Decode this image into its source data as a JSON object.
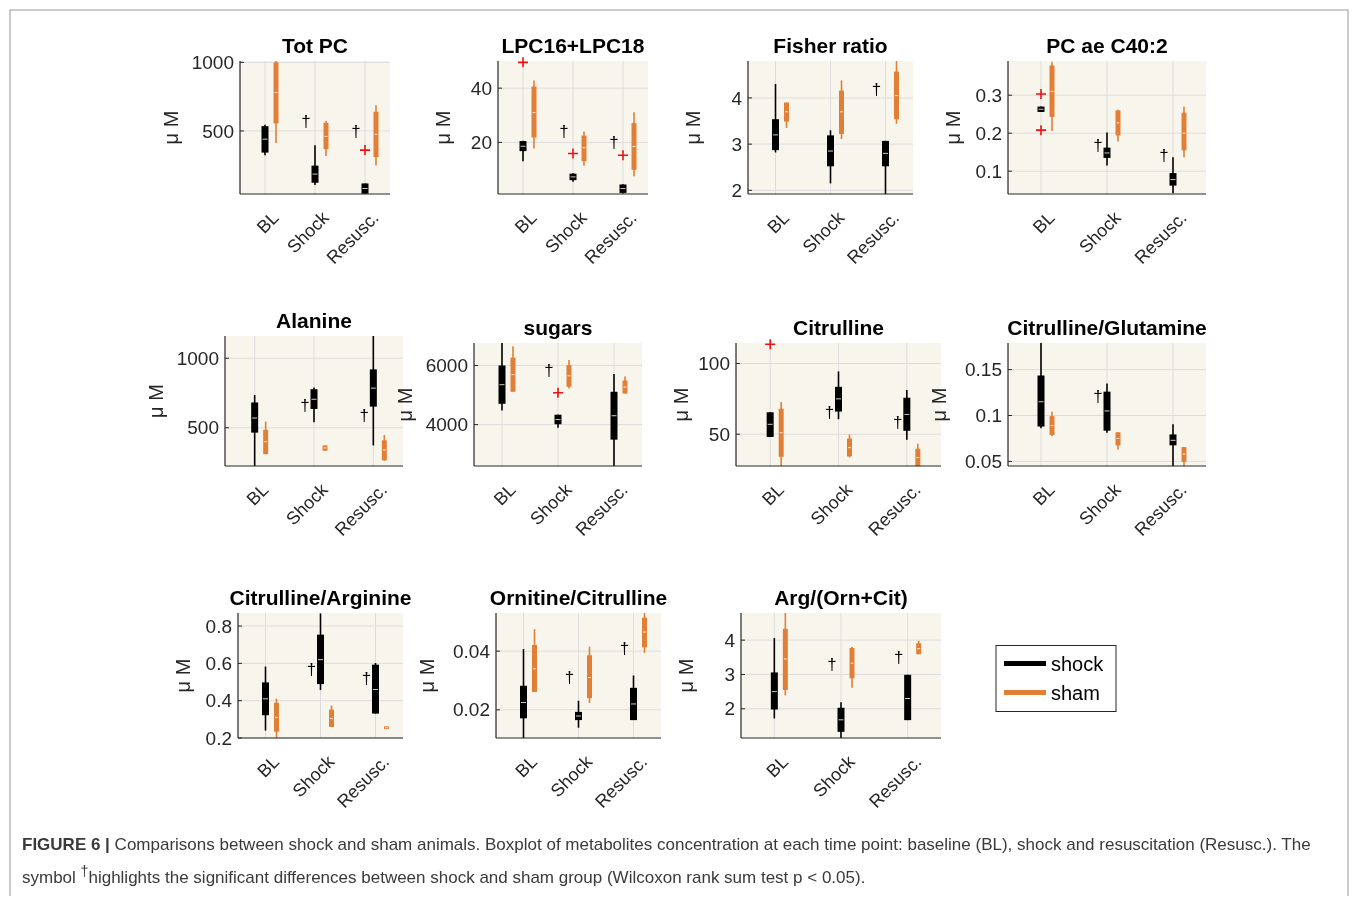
{
  "chart_data": [
    {
      "type": "box",
      "title": "Tot PC",
      "ylabel": "μ M",
      "categories": [
        "BL",
        "Shock",
        "Resusc."
      ],
      "ylim": [
        40,
        1010
      ],
      "yticks": [
        500,
        1000
      ],
      "grid": true,
      "series": [
        {
          "color": "#000000",
          "boxes": [
            {
              "low": 322,
              "q1": 342,
              "median": 440,
              "q3": 535,
              "high": 545
            },
            {
              "low": 105,
              "q1": 122,
              "median": 185,
              "q3": 247,
              "high": 395
            },
            {
              "low": 42,
              "q1": 42,
              "median": 80,
              "q3": 117,
              "high": 117,
              "outliers": [
                360
              ]
            }
          ]
        },
        {
          "color": "#e17f36",
          "boxes": [
            {
              "low": 412,
              "q1": 555,
              "median": 780,
              "q3": 1000,
              "high": 1010
            },
            {
              "low": 318,
              "q1": 367,
              "median": 460,
              "q3": 560,
              "high": 572
            },
            {
              "low": 247,
              "q1": 310,
              "median": 475,
              "q3": 640,
              "high": 687
            }
          ]
        }
      ],
      "annotations": [
        "†",
        "†"
      ]
    },
    {
      "type": "box",
      "title": "LPC16+LPC18",
      "ylabel": "μ M",
      "categories": [
        "BL",
        "Shock",
        "Resusc."
      ],
      "ylim": [
        1,
        50
      ],
      "yticks": [
        20,
        40
      ],
      "grid": true,
      "series": [
        {
          "color": "#000000",
          "boxes": [
            {
              "low": 13.1,
              "q1": 16.8,
              "median": 18.6,
              "q3": 20.5,
              "high": 20.6,
              "outliers": [
                49.5
              ]
            },
            {
              "low": 5.5,
              "q1": 6.1,
              "median": 7.3,
              "q3": 8.5,
              "high": 8.6,
              "outliers": [
                15.9
              ]
            },
            {
              "low": 1.2,
              "q1": 1.4,
              "median": 3,
              "q3": 4.5,
              "high": 4.6,
              "outliers": [
                15.3
              ]
            }
          ]
        },
        {
          "color": "#e17f36",
          "boxes": [
            {
              "low": 17.8,
              "q1": 21.8,
              "median": 31,
              "q3": 40.6,
              "high": 42.8
            },
            {
              "low": 11.4,
              "q1": 13.1,
              "median": 18,
              "q3": 22.5,
              "high": 24
            },
            {
              "low": 7.5,
              "q1": 9.9,
              "median": 18.5,
              "q3": 27.1,
              "high": 31.1
            }
          ]
        }
      ],
      "annotations": [
        "†",
        "†"
      ]
    },
    {
      "type": "box",
      "title": "Fisher ratio",
      "ylabel": "μ M",
      "categories": [
        "BL",
        "Shock",
        "Resusc."
      ],
      "ylim": [
        1.92,
        4.8
      ],
      "yticks": [
        2,
        3,
        4
      ],
      "grid": true,
      "series": [
        {
          "color": "#000000",
          "boxes": [
            {
              "low": 2.82,
              "q1": 2.87,
              "median": 3.2,
              "q3": 3.54,
              "high": 4.3
            },
            {
              "low": 2.15,
              "q1": 2.52,
              "median": 2.85,
              "q3": 3.19,
              "high": 3.3
            },
            {
              "low": 1.92,
              "q1": 2.52,
              "median": 2.8,
              "q3": 3.07,
              "high": 3.07
            }
          ]
        },
        {
          "color": "#e17f36",
          "boxes": [
            {
              "low": 3.35,
              "q1": 3.49,
              "median": 3.7,
              "q3": 3.9,
              "high": 3.9
            },
            {
              "low": 3.11,
              "q1": 3.22,
              "median": 3.7,
              "q3": 4.16,
              "high": 4.38
            },
            {
              "low": 3.44,
              "q1": 3.54,
              "median": 4.05,
              "q3": 4.57,
              "high": 4.8
            }
          ]
        }
      ],
      "annotations": [
        "†"
      ]
    },
    {
      "type": "box",
      "title": "PC ae C40:2",
      "ylabel": "μ M",
      "categories": [
        "BL",
        "Shock",
        "Resusc."
      ],
      "ylim": [
        0.04,
        0.39
      ],
      "yticks": [
        0.1,
        0.2,
        0.3
      ],
      "grid": true,
      "series": [
        {
          "color": "#000000",
          "boxes": [
            {
              "low": 0.256,
              "q1": 0.256,
              "median": 0.263,
              "q3": 0.27,
              "high": 0.27,
              "outliers": [
                0.303,
                0.208
              ]
            },
            {
              "low": 0.115,
              "q1": 0.135,
              "median": 0.148,
              "q3": 0.162,
              "high": 0.202
            },
            {
              "low": 0.042,
              "q1": 0.062,
              "median": 0.078,
              "q3": 0.095,
              "high": 0.137
            }
          ]
        },
        {
          "color": "#e17f36",
          "boxes": [
            {
              "low": 0.206,
              "q1": 0.243,
              "median": 0.31,
              "q3": 0.378,
              "high": 0.388
            },
            {
              "low": 0.178,
              "q1": 0.194,
              "median": 0.227,
              "q3": 0.26,
              "high": 0.262
            },
            {
              "low": 0.137,
              "q1": 0.155,
              "median": 0.2,
              "q3": 0.254,
              "high": 0.27
            }
          ]
        }
      ],
      "annotations": [
        "†",
        "†"
      ]
    },
    {
      "type": "box",
      "title": "Alanine",
      "ylabel": "μ M",
      "categories": [
        "BL",
        "Shock",
        "Resusc."
      ],
      "ylim": [
        225,
        1160
      ],
      "yticks": [
        500,
        1000
      ],
      "grid": true,
      "series": [
        {
          "color": "#000000",
          "boxes": [
            {
              "low": 225,
              "q1": 465,
              "median": 570,
              "q3": 682,
              "high": 735
            },
            {
              "low": 540,
              "q1": 635,
              "median": 705,
              "q3": 777,
              "high": 789
            },
            {
              "low": 373,
              "q1": 652,
              "median": 785,
              "q3": 920,
              "high": 1160
            }
          ]
        },
        {
          "color": "#e17f36",
          "boxes": [
            {
              "low": 310,
              "q1": 310,
              "median": 400,
              "q3": 485,
              "high": 545
            },
            {
              "low": 335,
              "q1": 335,
              "median": 355,
              "q3": 373,
              "high": 373
            },
            {
              "low": 262,
              "q1": 266,
              "median": 340,
              "q3": 410,
              "high": 448
            }
          ]
        }
      ],
      "annotations": [
        "†",
        "†"
      ]
    },
    {
      "type": "box",
      "title": "sugars",
      "ylabel": "μ M",
      "categories": [
        "BL",
        "Shock",
        "Resusc."
      ],
      "ylim": [
        2600,
        6760
      ],
      "yticks": [
        4000,
        6000
      ],
      "grid": true,
      "series": [
        {
          "color": "#000000",
          "boxes": [
            {
              "low": 4474,
              "q1": 4705,
              "median": 5350,
              "q3": 6000,
              "high": 6760
            },
            {
              "low": 3896,
              "q1": 4012,
              "median": 4170,
              "q3": 4335,
              "high": 4335,
              "outliers": [
                5075
              ]
            },
            {
              "low": 2600,
              "q1": 3491,
              "median": 4300,
              "q3": 5110,
              "high": 5711
            }
          ]
        },
        {
          "color": "#e17f36",
          "boxes": [
            {
              "low": 5110,
              "q1": 5110,
              "median": 5690,
              "q3": 6266,
              "high": 6647
            },
            {
              "low": 5225,
              "q1": 5283,
              "median": 5650,
              "q3": 6012,
              "high": 6185
            },
            {
              "low": 5052,
              "q1": 5052,
              "median": 5270,
              "q3": 5491,
              "high": 5630
            }
          ]
        }
      ],
      "annotations": [
        "†"
      ]
    },
    {
      "type": "box",
      "title": "Citrulline",
      "ylabel": "μ M",
      "categories": [
        "BL",
        "Shock",
        "Resusc."
      ],
      "ylim": [
        27.5,
        114.5
      ],
      "yticks": [
        50,
        100
      ],
      "grid": true,
      "series": [
        {
          "color": "#000000",
          "boxes": [
            {
              "low": 48,
              "q1": 48,
              "median": 57,
              "q3": 65.5,
              "high": 65.5,
              "outliers": [
                113.6
              ]
            },
            {
              "low": 60.6,
              "q1": 66,
              "median": 75,
              "q3": 83.5,
              "high": 94.4
            },
            {
              "low": 46.1,
              "q1": 52.4,
              "median": 64,
              "q3": 75.8,
              "high": 81.3
            }
          ]
        },
        {
          "color": "#e17f36",
          "boxes": [
            {
              "low": 27.5,
              "q1": 34,
              "median": 51,
              "q3": 68,
              "high": 72.8
            },
            {
              "low": 33.6,
              "q1": 34.3,
              "median": 40.5,
              "q3": 46.9,
              "high": 49.8
            },
            {
              "low": 27.5,
              "q1": 27.5,
              "median": 33.5,
              "q3": 39.7,
              "high": 43.3
            }
          ]
        }
      ],
      "annotations": [
        "†",
        "†"
      ]
    },
    {
      "type": "box",
      "title": "Citrulline/Glutamine",
      "ylabel": "μ M",
      "categories": [
        "BL",
        "Shock",
        "Resusc."
      ],
      "ylim": [
        0.045,
        0.179
      ],
      "yticks": [
        0.05,
        0.1,
        0.15
      ],
      "grid": true,
      "series": [
        {
          "color": "#000000",
          "boxes": [
            {
              "low": 0.086,
              "q1": 0.088,
              "median": 0.115,
              "q3": 0.1436,
              "high": 0.179
            },
            {
              "low": 0.0813,
              "q1": 0.0835,
              "median": 0.105,
              "q3": 0.126,
              "high": 0.1348
            },
            {
              "low": 0.045,
              "q1": 0.0675,
              "median": 0.073,
              "q3": 0.0794,
              "high": 0.0906
            }
          ]
        },
        {
          "color": "#e17f36",
          "boxes": [
            {
              "low": 0.0776,
              "q1": 0.0787,
              "median": 0.089,
              "q3": 0.0993,
              "high": 0.104
            },
            {
              "low": 0.063,
              "q1": 0.0675,
              "median": 0.075,
              "q3": 0.0817,
              "high": 0.0817
            },
            {
              "low": 0.045,
              "q1": 0.0496,
              "median": 0.058,
              "q3": 0.0656,
              "high": 0.0656
            }
          ]
        }
      ],
      "annotations": [
        "†"
      ]
    },
    {
      "type": "box",
      "title": "Citrulline/Arginine",
      "ylabel": "μ M",
      "categories": [
        "BL",
        "Shock",
        "Resusc."
      ],
      "ylim": [
        0.2,
        0.87
      ],
      "yticks": [
        0.2,
        0.4,
        0.6,
        0.8
      ],
      "grid": true,
      "series": [
        {
          "color": "#000000",
          "boxes": [
            {
              "low": 0.24,
              "q1": 0.322,
              "median": 0.41,
              "q3": 0.498,
              "high": 0.583
            },
            {
              "low": 0.457,
              "q1": 0.489,
              "median": 0.62,
              "q3": 0.754,
              "high": 0.868
            },
            {
              "low": 0.331,
              "q1": 0.331,
              "median": 0.46,
              "q3": 0.593,
              "high": 0.602
            }
          ]
        },
        {
          "color": "#e17f36",
          "boxes": [
            {
              "low": 0.2,
              "q1": 0.234,
              "median": 0.31,
              "q3": 0.389,
              "high": 0.411
            },
            {
              "low": 0.259,
              "q1": 0.259,
              "median": 0.305,
              "q3": 0.352,
              "high": 0.374
            },
            {
              "low": 0.248,
              "q1": 0.248,
              "median": 0.255,
              "q3": 0.262,
              "high": 0.262
            }
          ]
        }
      ],
      "annotations": [
        "†",
        "†"
      ]
    },
    {
      "type": "box",
      "title": "Ornitine/Citrulline",
      "ylabel": "μ M",
      "categories": [
        "BL",
        "Shock",
        "Resusc."
      ],
      "ylim": [
        0.0104,
        0.053
      ],
      "yticks": [
        0.02,
        0.04
      ],
      "grid": true,
      "series": [
        {
          "color": "#000000",
          "boxes": [
            {
              "low": 0.0104,
              "q1": 0.0171,
              "median": 0.0225,
              "q3": 0.0282,
              "high": 0.0407
            },
            {
              "low": 0.0139,
              "q1": 0.0165,
              "median": 0.0179,
              "q3": 0.0193,
              "high": 0.0231
            },
            {
              "low": 0.0165,
              "q1": 0.0165,
              "median": 0.022,
              "q3": 0.0275,
              "high": 0.0317
            }
          ]
        },
        {
          "color": "#e17f36",
          "boxes": [
            {
              "low": 0.0261,
              "q1": 0.0261,
              "median": 0.034,
              "q3": 0.0421,
              "high": 0.0475
            },
            {
              "low": 0.0223,
              "q1": 0.024,
              "median": 0.031,
              "q3": 0.0386,
              "high": 0.0415
            },
            {
              "low": 0.0394,
              "q1": 0.0413,
              "median": 0.0465,
              "q3": 0.0514,
              "high": 0.053
            }
          ]
        }
      ],
      "annotations": [
        "†",
        "†"
      ]
    },
    {
      "type": "box",
      "title": "Arg/(Orn+Cit)",
      "ylabel": "μ M",
      "categories": [
        "BL",
        "Shock",
        "Resusc."
      ],
      "ylim": [
        1.15,
        4.79
      ],
      "yticks": [
        2,
        3,
        4
      ],
      "grid": true,
      "legend": "right",
      "series": [
        {
          "name": "shock",
          "color": "#000000",
          "boxes": [
            {
              "low": 1.72,
              "q1": 1.98,
              "median": 2.5,
              "q3": 3.06,
              "high": 4.06
            },
            {
              "low": 1.15,
              "q1": 1.33,
              "median": 1.68,
              "q3": 2.03,
              "high": 2.19
            },
            {
              "low": 1.67,
              "q1": 1.67,
              "median": 2.3,
              "q3": 2.99,
              "high": 2.99
            }
          ]
        },
        {
          "name": "sham",
          "color": "#e17f36",
          "boxes": [
            {
              "low": 2.39,
              "q1": 2.55,
              "median": 3.45,
              "q3": 4.33,
              "high": 4.79
            },
            {
              "low": 2.61,
              "q1": 2.89,
              "median": 3.33,
              "q3": 3.77,
              "high": 3.81
            },
            {
              "low": 3.59,
              "q1": 3.59,
              "median": 3.75,
              "q3": 3.91,
              "high": 3.98
            }
          ]
        }
      ],
      "annotations": [
        "†",
        "†",
        "FIGURE 6 | Comparisons between shock and sham animals. Boxplot of metabolites concentration at each time point: baseline (BL), shock and resuscitation (Resusc.). The symbol $^{†}$highlights the significant differences between shock and sham group (Wilcoxon rank sum test p < 0.05)."
      ]
    }
  ]
}
